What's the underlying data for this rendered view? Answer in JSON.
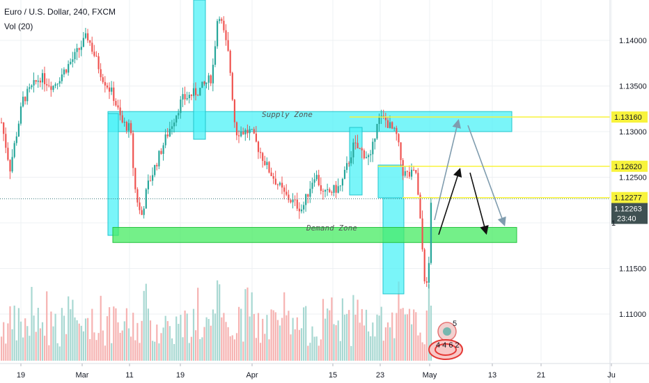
{
  "header": {
    "title": "Euro / U.S. Dollar, 240, FXCM",
    "volume_label": "Vol (20)"
  },
  "chart_data": {
    "type": "candlestick",
    "symbol": "Euro / U.S. Dollar",
    "interval": "240",
    "source": "FXCM",
    "x_ticks": [
      "19",
      "Mar",
      "11",
      "19",
      "Apr",
      "15",
      "23",
      "May",
      "13",
      "21",
      "Ju"
    ],
    "y_ticks": [
      "1.14000",
      "1.13500",
      "1.13000",
      "1.12500",
      "1.11500",
      "1.11000"
    ],
    "ylim": [
      1.1085,
      1.1445
    ],
    "price_anchors": [
      {
        "at": 0.0,
        "price": 1.131
      },
      {
        "at": 0.02,
        "price": 1.126
      },
      {
        "at": 0.05,
        "price": 1.1335
      },
      {
        "at": 0.09,
        "price": 1.136
      },
      {
        "at": 0.12,
        "price": 1.135
      },
      {
        "at": 0.17,
        "price": 1.1382
      },
      {
        "at": 0.2,
        "price": 1.1405
      },
      {
        "at": 0.235,
        "price": 1.136
      },
      {
        "at": 0.26,
        "price": 1.134
      },
      {
        "at": 0.28,
        "price": 1.131
      },
      {
        "at": 0.3,
        "price": 1.1303
      },
      {
        "at": 0.31,
        "price": 1.124
      },
      {
        "at": 0.325,
        "price": 1.1205
      },
      {
        "at": 0.34,
        "price": 1.124
      },
      {
        "at": 0.38,
        "price": 1.129
      },
      {
        "at": 0.42,
        "price": 1.1335
      },
      {
        "at": 0.46,
        "price": 1.1345
      },
      {
        "at": 0.49,
        "price": 1.136
      },
      {
        "at": 0.505,
        "price": 1.1435
      },
      {
        "at": 0.53,
        "price": 1.138
      },
      {
        "at": 0.545,
        "price": 1.13
      },
      {
        "at": 0.58,
        "price": 1.13
      },
      {
        "at": 0.62,
        "price": 1.126
      },
      {
        "at": 0.66,
        "price": 1.123
      },
      {
        "at": 0.7,
        "price": 1.1215
      },
      {
        "at": 0.73,
        "price": 1.1255
      },
      {
        "at": 0.75,
        "price": 1.123
      },
      {
        "at": 0.79,
        "price": 1.124
      },
      {
        "at": 0.82,
        "price": 1.1285
      },
      {
        "at": 0.86,
        "price": 1.127
      },
      {
        "at": 0.875,
        "price": 1.1315
      },
      {
        "at": 0.895,
        "price": 1.1312
      },
      {
        "at": 0.92,
        "price": 1.1295
      },
      {
        "at": 0.935,
        "price": 1.1255
      },
      {
        "at": 0.95,
        "price": 1.1252
      },
      {
        "at": 0.965,
        "price": 1.1255
      },
      {
        "at": 0.975,
        "price": 1.12
      },
      {
        "at": 0.985,
        "price": 1.114
      },
      {
        "at": 0.99,
        "price": 1.113
      },
      {
        "at": 0.995,
        "price": 1.1155
      },
      {
        "at": 1.0,
        "price": 1.1225
      }
    ],
    "zones": [
      {
        "name": "Supply Zone",
        "type": "supply",
        "price_top": 1.1322,
        "price_bottom": 1.13
      },
      {
        "name": "Demand Zone",
        "type": "demand",
        "price_top": 1.1195,
        "price_bottom": 1.1183
      }
    ],
    "price_lines": [
      {
        "label": "1.13160",
        "price": 1.1316
      },
      {
        "label": "1.12620",
        "price": 1.1262
      },
      {
        "label": "1.12277",
        "price": 1.12277
      }
    ],
    "last_price": {
      "label": "1.12263",
      "price": 1.12263,
      "countdown": "23:40"
    },
    "volume": {
      "label": "Vol (20)"
    },
    "colors": {
      "up": "#26a69a",
      "down": "#ef5350",
      "vol_up": "#a8d8d2",
      "vol_down": "#f6b2b1",
      "zone_cyan": "#4ef2f7",
      "zone_green": "#46eb62",
      "level_line": "#f8f33c",
      "label_bg": "#f8f33c",
      "last_bg": "#3f5152",
      "arrow_blue": "#7f9cae",
      "arrow_black": "#111111"
    }
  }
}
